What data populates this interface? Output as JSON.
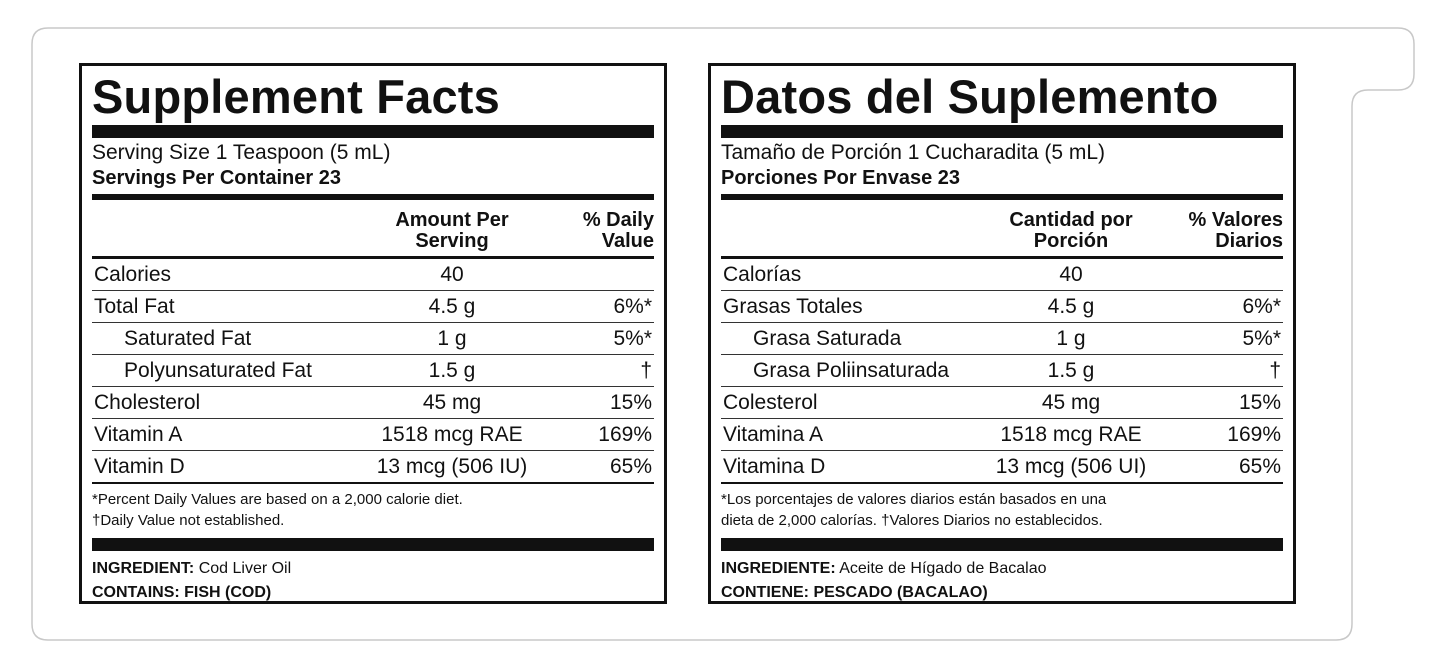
{
  "panels": {
    "en": {
      "title": "Supplement Facts",
      "serving_size": "Serving Size 1 Teaspoon (5 mL)",
      "servings_per_container": "Servings Per Container 23",
      "header_amount_1": "Amount Per",
      "header_amount_2": "Serving",
      "header_dv_1": "% Daily",
      "header_dv_2": "Value",
      "rows": [
        {
          "name": "Calories",
          "amount": "40",
          "dv": ""
        },
        {
          "name": "Total Fat",
          "amount": "4.5 g",
          "dv": "6%*"
        },
        {
          "name": "Saturated Fat",
          "amount": "1 g",
          "dv": "5%*"
        },
        {
          "name": "Polyunsaturated Fat",
          "amount": "1.5 g",
          "dv": "†"
        },
        {
          "name": "Cholesterol",
          "amount": "45 mg",
          "dv": "15%"
        },
        {
          "name": "Vitamin A",
          "amount": "1518 mcg RAE",
          "dv": "169%"
        },
        {
          "name": "Vitamin D",
          "amount": "13 mcg (506 IU)",
          "dv": "65%"
        }
      ],
      "footnote_1": "*Percent Daily Values are based on a 2,000 calorie diet.",
      "footnote_2": "†Daily Value not established.",
      "ingredient_label": "INGREDIENT:",
      "ingredient_value": "Cod Liver Oil",
      "contains": "CONTAINS: FISH (COD)"
    },
    "es": {
      "title": "Datos del Suplemento",
      "serving_size": "Tamaño de Porción 1 Cucharadita (5 mL)",
      "servings_per_container": "Porciones Por Envase 23",
      "header_amount_1": "Cantidad por",
      "header_amount_2": "Porción",
      "header_dv_1": "% Valores",
      "header_dv_2": "Diarios",
      "rows": [
        {
          "name": "Calorías",
          "amount": "40",
          "dv": ""
        },
        {
          "name": "Grasas Totales",
          "amount": "4.5 g",
          "dv": "6%*"
        },
        {
          "name": "Grasa Saturada",
          "amount": "1 g",
          "dv": "5%*"
        },
        {
          "name": "Grasa Poliinsaturada",
          "amount": "1.5 g",
          "dv": "†"
        },
        {
          "name": "Colesterol",
          "amount": "45 mg",
          "dv": "15%"
        },
        {
          "name": "Vitamina A",
          "amount": "1518 mcg RAE",
          "dv": "169%"
        },
        {
          "name": "Vitamina D",
          "amount": "13 mcg (506 UI)",
          "dv": "65%"
        }
      ],
      "footnote_1": "*Los porcentajes de valores diarios están basados en una",
      "footnote_2": "dieta de 2,000 calorías.  †Valores Diarios no establecidos.",
      "ingredient_label": "INGREDIENTE:",
      "ingredient_value": "Aceite de Hígado de Bacalao",
      "contains": "CONTIENE: PESCADO (BACALAO)"
    }
  }
}
